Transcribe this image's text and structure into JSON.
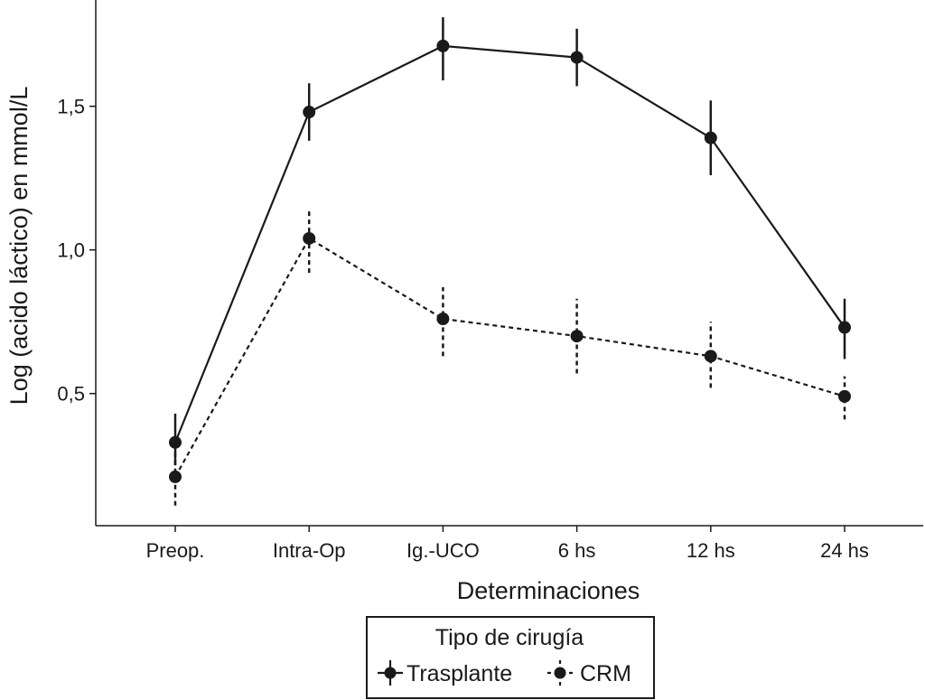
{
  "chart_data": {
    "type": "line",
    "xlabel": "Determinaciones",
    "ylabel": "Log (acido láctico) en mmol/L",
    "categories": [
      "Preop.",
      "Intra-Op",
      "Ig.-UCO",
      "6 hs",
      "12 hs",
      "24 hs"
    ],
    "ylim": [
      0.04,
      1.87
    ],
    "yticks": [
      0.5,
      1.0,
      1.5
    ],
    "ytick_labels": [
      "0,5",
      "1,0",
      "1,5"
    ],
    "grid": false,
    "legend": {
      "title": "Tipo de cirugía",
      "position": "bottom-center"
    },
    "series": [
      {
        "name": "Trasplante",
        "line_style": "solid",
        "color": "#1a1a1a",
        "values": [
          0.33,
          1.48,
          1.71,
          1.67,
          1.39,
          0.73
        ],
        "error_low": [
          0.25,
          1.38,
          1.59,
          1.57,
          1.26,
          0.62
        ],
        "error_high": [
          0.43,
          1.58,
          1.81,
          1.77,
          1.52,
          0.83
        ]
      },
      {
        "name": "CRM",
        "line_style": "dashed",
        "color": "#1a1a1a",
        "values": [
          0.21,
          1.04,
          0.76,
          0.7,
          0.63,
          0.49
        ],
        "error_low": [
          0.11,
          0.92,
          0.63,
          0.57,
          0.52,
          0.41
        ],
        "error_high": [
          0.31,
          1.14,
          0.87,
          0.83,
          0.75,
          0.56
        ]
      }
    ]
  }
}
